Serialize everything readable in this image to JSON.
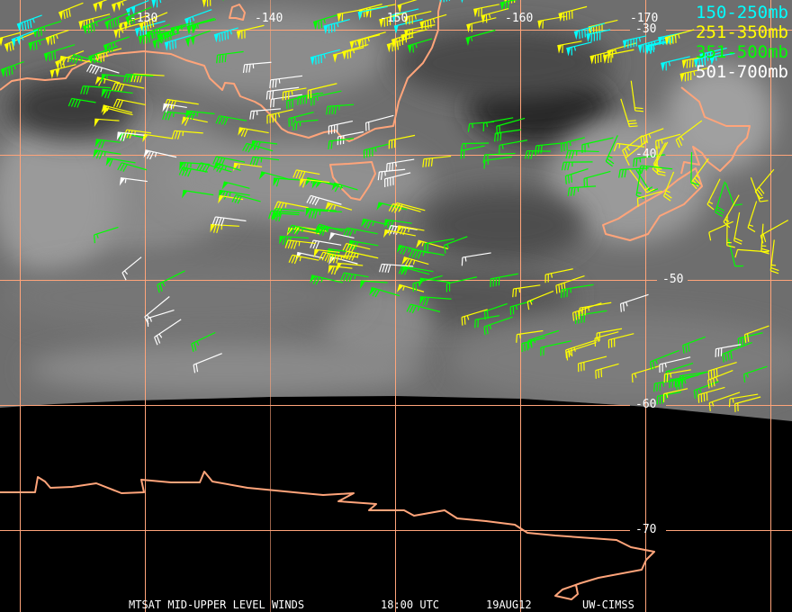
{
  "product": {
    "satellite": "MTSAT",
    "title": "MTSAT MID-UPPER LEVEL WINDS",
    "time": "18:00 UTC",
    "date": "19AUG12",
    "credit": "UW-CIMSS"
  },
  "grid": {
    "line_color": "#ffa47a",
    "longitude_labels": [
      "-130",
      "-140",
      "-150",
      "-160",
      "-170"
    ],
    "latitude_labels": [
      "-30",
      "-40",
      "-50",
      "-60",
      "-70"
    ]
  },
  "legend": [
    {
      "label": "150-250mb",
      "color": "#00ffff"
    },
    {
      "label": "251-350mb",
      "color": "#ffff00"
    },
    {
      "label": "351-500mb",
      "color": "#00ff00"
    },
    {
      "label": "501-700mb",
      "color": "#ffffff"
    }
  ],
  "coastline_color": "#ffa47a"
}
